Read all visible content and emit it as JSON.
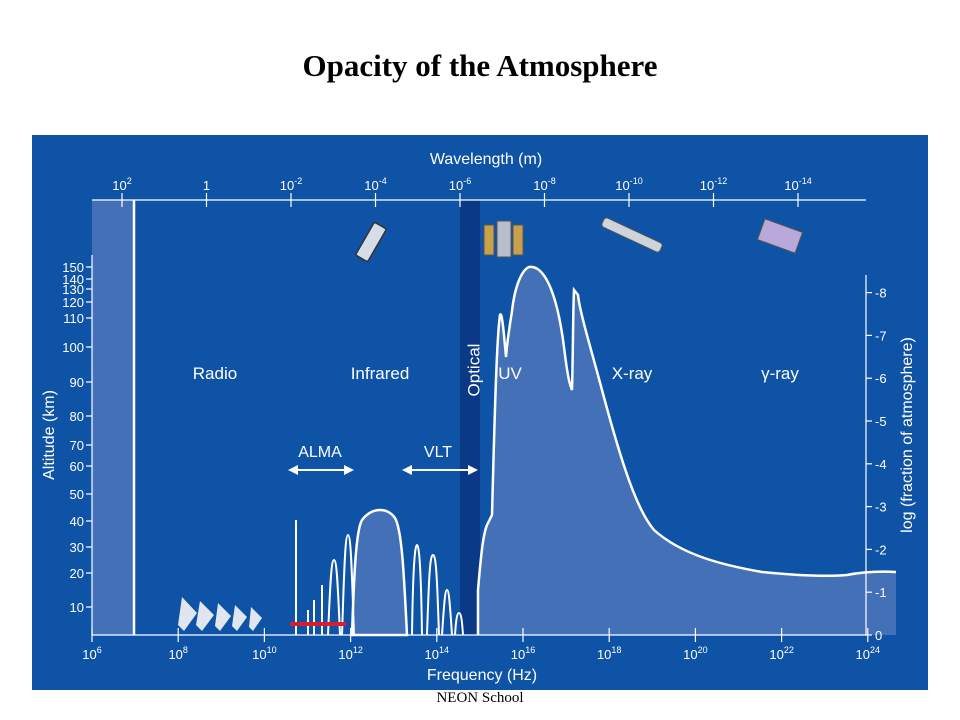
{
  "title": "Opacity of the Atmosphere",
  "footer": "NEON School",
  "colors": {
    "background": "#0e53a6",
    "opaque_fill": "#4370b6",
    "optical_band": "#0a3a85",
    "curve": "#ffffff",
    "alma_marker": "#d81e2c"
  },
  "diagram": {
    "wavelength_label": "Wavelength (m)",
    "wavelength_ticks": [
      {
        "base": "10",
        "exp": "2"
      },
      {
        "base": "1",
        "exp": ""
      },
      {
        "base": "10",
        "exp": "-2"
      },
      {
        "base": "10",
        "exp": "-4"
      },
      {
        "base": "10",
        "exp": "-6"
      },
      {
        "base": "10",
        "exp": "-8"
      },
      {
        "base": "10",
        "exp": "-10"
      },
      {
        "base": "10",
        "exp": "-12"
      },
      {
        "base": "10",
        "exp": "-14"
      }
    ],
    "frequency_label": "Frequency (Hz)",
    "frequency_ticks": [
      {
        "base": "10",
        "exp": "6"
      },
      {
        "base": "10",
        "exp": "8"
      },
      {
        "base": "10",
        "exp": "10"
      },
      {
        "base": "10",
        "exp": "12"
      },
      {
        "base": "10",
        "exp": "14"
      },
      {
        "base": "10",
        "exp": "16"
      },
      {
        "base": "10",
        "exp": "18"
      },
      {
        "base": "10",
        "exp": "20"
      },
      {
        "base": "10",
        "exp": "22"
      },
      {
        "base": "10",
        "exp": "24"
      }
    ],
    "altitude_label": "Altitude (km)",
    "altitude_ticks": [
      "10",
      "20",
      "30",
      "40",
      "50",
      "60",
      "70",
      "80",
      "90",
      "100",
      "110",
      "120",
      "130",
      "140",
      "150"
    ],
    "log_label": "log (fraction of atmosphere)",
    "log_ticks": [
      "0",
      "-1",
      "-2",
      "-3",
      "-4",
      "-5",
      "-6",
      "-7",
      "-8"
    ],
    "regions": {
      "radio": "Radio",
      "infrared": "Infrared",
      "optical": "Optical",
      "uv": "UV",
      "xray": "X-ray",
      "gamma": "γ-ray"
    },
    "instruments": {
      "alma": "ALMA",
      "vlt": "VLT"
    }
  }
}
